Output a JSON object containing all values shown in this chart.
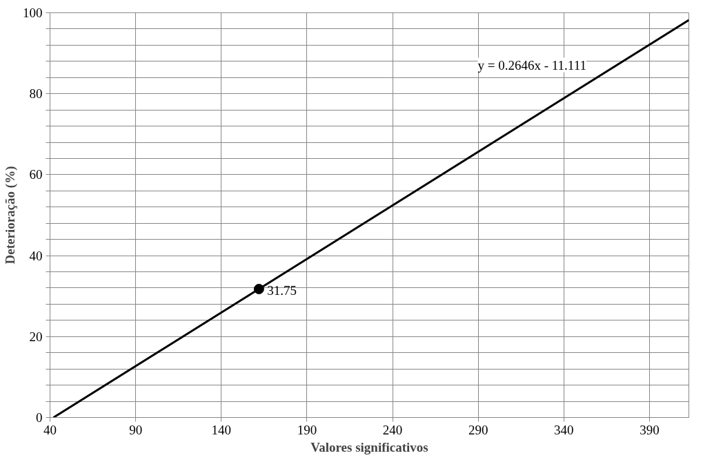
{
  "chart_data": {
    "type": "line",
    "xlabel": "Valores significativos",
    "ylabel": "Deterioração (%)",
    "xlim": [
      40,
      413
    ],
    "ylim": [
      0,
      100
    ],
    "xticks": [
      40,
      90,
      140,
      190,
      240,
      290,
      340,
      390
    ],
    "yticks": [
      0,
      {
        "value": 4,
        "label": null
      },
      {
        "value": 8,
        "label": null
      },
      {
        "value": 12,
        "label": null
      },
      {
        "value": 16,
        "label": null
      },
      20,
      {
        "value": 24,
        "label": null
      },
      {
        "value": 28,
        "label": null
      },
      {
        "value": 32,
        "label": null
      },
      {
        "value": 36,
        "label": null
      },
      40,
      {
        "value": 44,
        "label": null
      },
      {
        "value": 48,
        "label": null
      },
      {
        "value": 52,
        "label": null
      },
      {
        "value": 56,
        "label": null
      },
      60,
      {
        "value": 64,
        "label": null
      },
      {
        "value": 68,
        "label": null
      },
      {
        "value": 72,
        "label": null
      },
      {
        "value": 76,
        "label": null
      },
      80,
      {
        "value": 84,
        "label": null
      },
      {
        "value": 88,
        "label": null
      },
      {
        "value": 92,
        "label": null
      },
      {
        "value": 96,
        "label": null
      },
      100
    ],
    "grid": true,
    "series": [
      {
        "color": "#000000",
        "x": [
          42,
          413
        ],
        "values": [
          0,
          98.2
        ],
        "marker": "none"
      },
      {
        "type": "scatter",
        "color": "#000000",
        "x": [
          162
        ],
        "values": [
          31.75
        ],
        "marker": "circle",
        "value_labels": [
          "31.75"
        ]
      }
    ],
    "annotations": [
      "y = 0.2646x - 11.111"
    ]
  }
}
